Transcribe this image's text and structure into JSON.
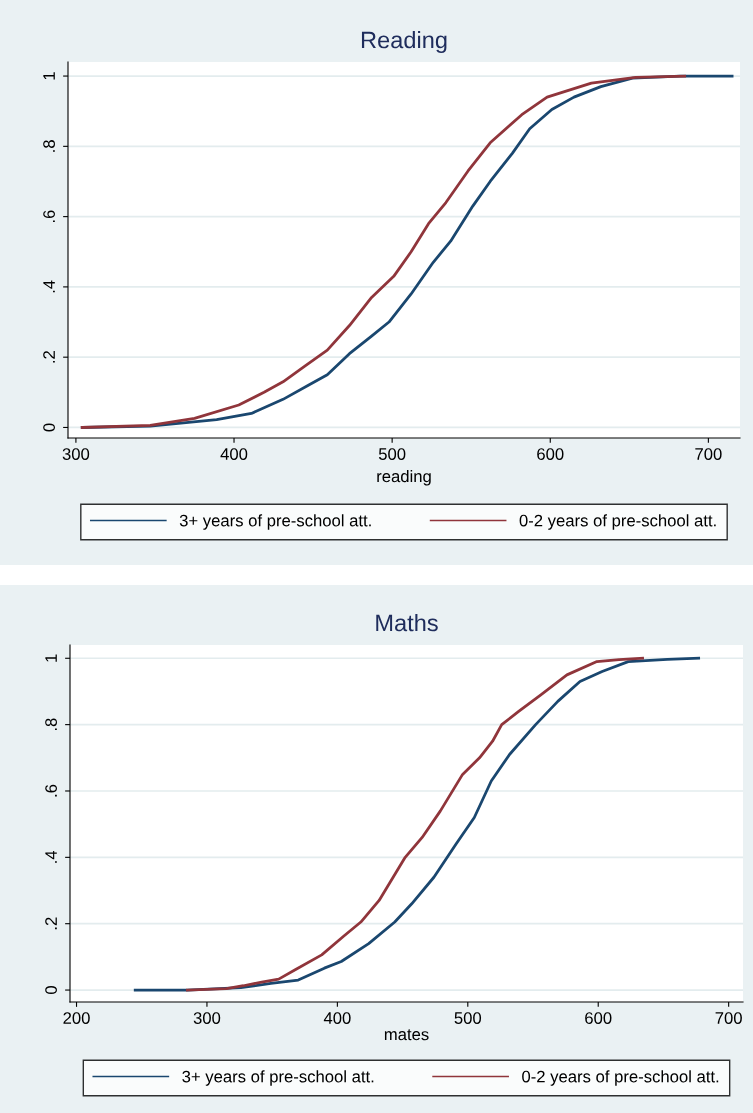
{
  "chart_data": [
    {
      "type": "line",
      "title": "Reading",
      "xlabel": "reading",
      "xlim": [
        295,
        720
      ],
      "xticks": [
        300,
        400,
        500,
        600,
        700
      ],
      "ylim": [
        -0.03,
        1.04
      ],
      "yticks": [
        0,
        {
          "value": 0.2,
          "label": ".2"
        },
        {
          "value": 0.4,
          "label": ".4"
        },
        {
          "value": 0.6,
          "label": ".6"
        },
        {
          "value": 0.8,
          "label": ".8"
        },
        1
      ],
      "grid": "y",
      "legend": "bottom",
      "line_style": "solid",
      "series": [
        {
          "name": "3+ years of pre-school att.",
          "color": "#1a476f",
          "x": [
            304,
            347,
            389,
            411,
            431,
            447,
            459,
            473,
            487,
            498,
            512,
            526,
            537,
            551,
            562,
            576,
            587,
            601,
            615,
            632,
            652,
            682,
            715
          ],
          "values": [
            0,
            0.004,
            0.022,
            0.04,
            0.08,
            0.12,
            0.15,
            0.21,
            0.26,
            0.3,
            0.38,
            0.47,
            0.53,
            0.63,
            0.7,
            0.78,
            0.85,
            0.905,
            0.94,
            0.97,
            0.994,
            1.0,
            1.0
          ]
        },
        {
          "name": "0-2 years of pre-school att.",
          "color": "#90353b",
          "x": [
            304,
            347,
            375,
            403,
            419,
            431,
            445,
            459,
            473,
            487,
            501,
            512,
            523,
            534,
            548,
            562,
            582,
            598,
            626,
            654,
            685
          ],
          "values": [
            0,
            0.006,
            0.026,
            0.064,
            0.1,
            0.13,
            0.175,
            0.22,
            0.29,
            0.37,
            0.43,
            0.5,
            0.58,
            0.64,
            0.73,
            0.81,
            0.89,
            0.94,
            0.98,
            0.996,
            1.0
          ]
        }
      ]
    },
    {
      "type": "line",
      "title": "Maths",
      "xlabel": "mates",
      "xlim": [
        195,
        711
      ],
      "xticks": [
        200,
        300,
        400,
        500,
        600,
        700
      ],
      "ylim": [
        -0.036,
        1.04
      ],
      "yticks": [
        0,
        {
          "value": 0.2,
          "label": ".2"
        },
        {
          "value": 0.4,
          "label": ".4"
        },
        {
          "value": 0.6,
          "label": ".6"
        },
        {
          "value": 0.8,
          "label": ".8"
        },
        1
      ],
      "grid": "y",
      "legend": "bottom",
      "line_style": "solid",
      "series": [
        {
          "name": "3+ years of pre-school att.",
          "color": "#1a476f",
          "x": [
            245,
            285,
            326,
            349,
            370,
            390,
            403,
            424,
            444,
            457,
            474,
            491,
            505,
            518,
            532,
            552,
            569,
            586,
            603,
            623,
            653,
            677
          ],
          "values": [
            0,
            0,
            0.007,
            0.02,
            0.03,
            0.066,
            0.086,
            0.14,
            0.205,
            0.26,
            0.34,
            0.44,
            0.52,
            0.63,
            0.71,
            0.8,
            0.87,
            0.93,
            0.96,
            0.99,
            0.997,
            1.0
          ]
        },
        {
          "name": "0-2 years of pre-school att.",
          "color": "#90353b",
          "x": [
            285,
            315,
            328,
            342,
            355,
            368,
            388,
            405,
            418,
            432,
            452,
            465,
            479,
            496,
            509,
            519,
            526,
            539,
            556,
            576,
            599,
            616,
            634
          ],
          "values": [
            0,
            0.004,
            0.013,
            0.024,
            0.033,
            0.062,
            0.106,
            0.163,
            0.205,
            0.27,
            0.4,
            0.46,
            0.54,
            0.65,
            0.7,
            0.75,
            0.8,
            0.84,
            0.89,
            0.95,
            0.99,
            0.996,
            1.0
          ]
        }
      ]
    }
  ]
}
